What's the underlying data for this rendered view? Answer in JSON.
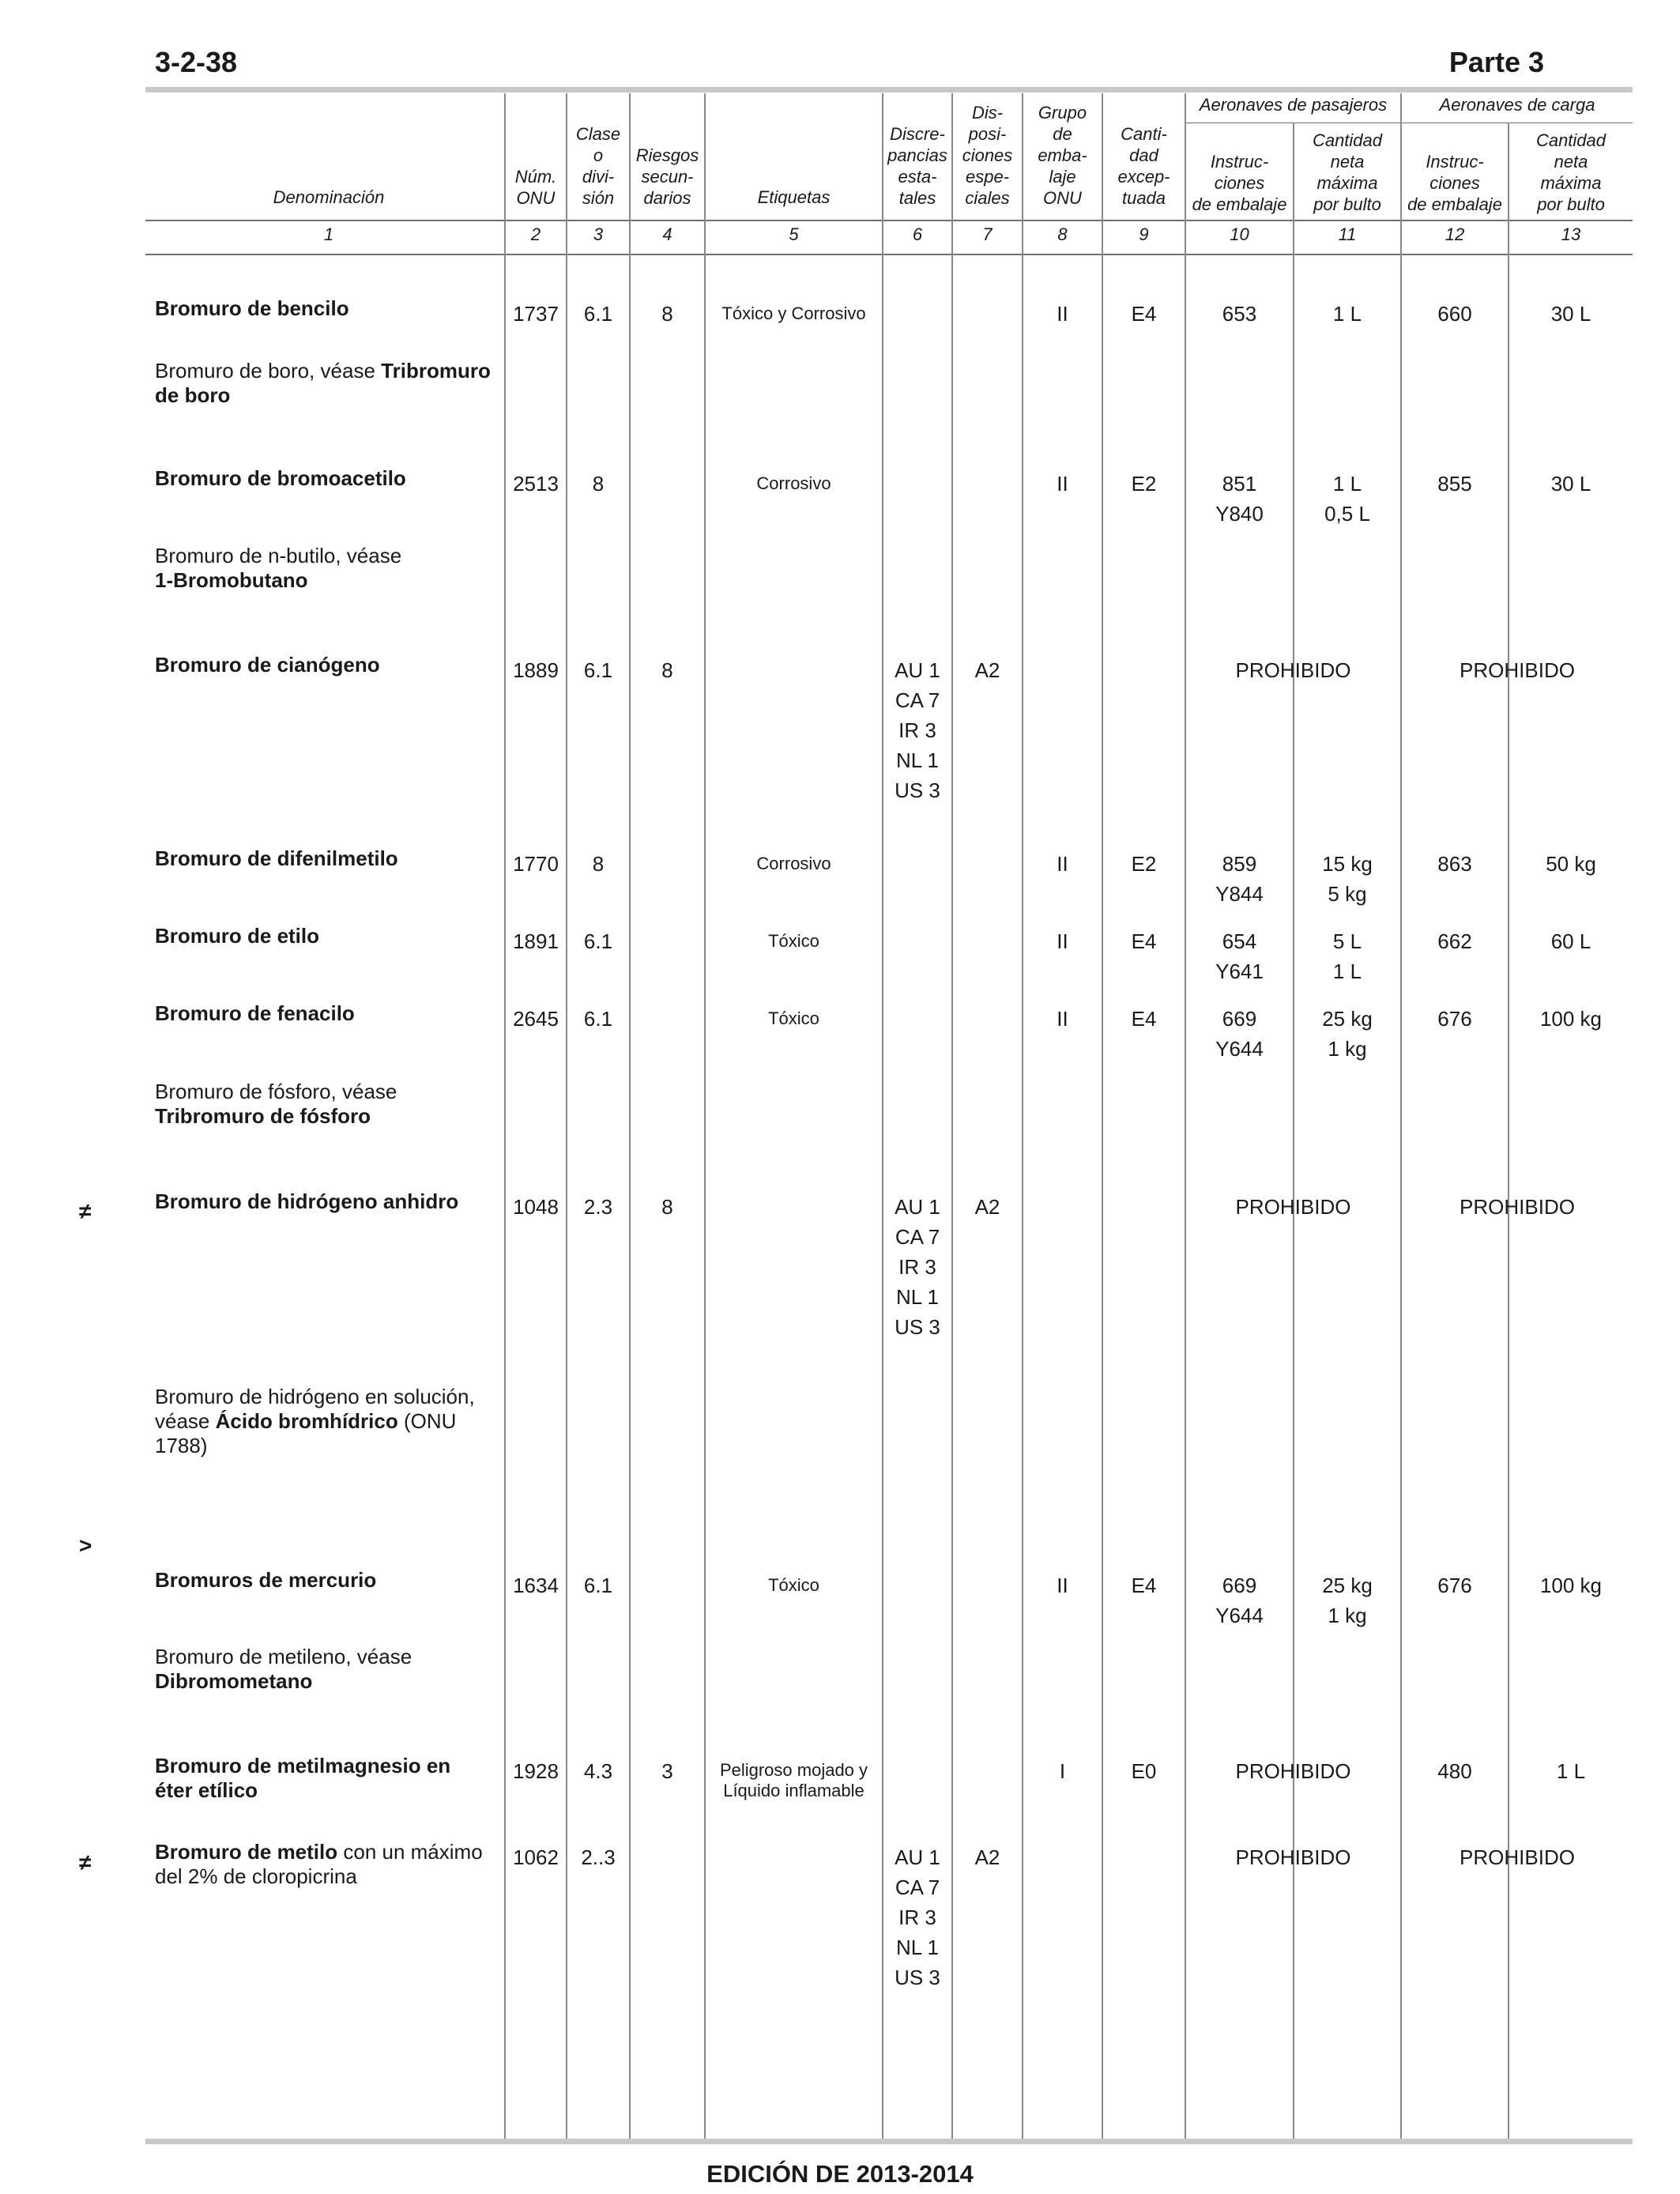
{
  "page": {
    "number": "3-2-38",
    "part": "Parte 3",
    "footer": "EDICIÓN DE 2013-2014"
  },
  "headers": {
    "c1": "Denominación",
    "c2": [
      "Núm.",
      "ONU"
    ],
    "c3": [
      "Clase",
      "o",
      "divi-",
      "sión"
    ],
    "c4": [
      "Riesgos",
      "secun-",
      "darios"
    ],
    "c5": "Etiquetas",
    "c6": [
      "Discre-",
      "pancias",
      "esta-",
      "tales"
    ],
    "c7": [
      "Dis-",
      "posi-",
      "ciones",
      "espe-",
      "ciales"
    ],
    "c8": [
      "Grupo",
      "de",
      "emba-",
      "laje",
      "ONU"
    ],
    "c9": [
      "Canti-",
      "dad",
      "excep-",
      "tuada"
    ],
    "pax": "Aeronaves de pasajeros",
    "cargo": "Aeronaves de carga",
    "c10": [
      "Instruc-",
      "ciones",
      "de embalaje"
    ],
    "c11": [
      "Cantidad",
      "neta",
      "máxima",
      "por bulto"
    ],
    "c12": [
      "Instruc-",
      "ciones",
      "de embalaje"
    ],
    "c13": [
      "Cantidad",
      "neta",
      "máxima",
      "por bulto"
    ],
    "numbers": [
      "1",
      "2",
      "3",
      "4",
      "5",
      "6",
      "7",
      "8",
      "9",
      "10",
      "11",
      "12",
      "13"
    ]
  },
  "rows": [
    {
      "name_bold": "Bromuro de bencilo",
      "onu": "1737",
      "clase": "6.1",
      "riesgos": "8",
      "etiquetas": "Tóxico y Corrosivo",
      "grupo": "II",
      "cant": "E4",
      "pax_instr": "653",
      "pax_qty": "1 L",
      "cargo_instr": "660",
      "cargo_qty": "30 L"
    },
    {
      "ref_prefix": "Bromuro de boro, véase ",
      "ref_bold": "Tribromuro de boro"
    },
    {
      "name_bold": "Bromuro de bromoacetilo",
      "onu": "2513",
      "clase": "8",
      "etiquetas": "Corrosivo",
      "grupo": "II",
      "cant": "E2",
      "pax_instr": "851",
      "pax_instr2": "Y840",
      "pax_qty": "1 L",
      "pax_qty2": "0,5 L",
      "cargo_instr": "855",
      "cargo_qty": "30 L"
    },
    {
      "ref_prefix": "Bromuro de n-butilo, véase",
      "ref_bold": "1-Bromobutano"
    },
    {
      "name_bold": "Bromuro de cianógeno",
      "onu": "1889",
      "clase": "6.1",
      "riesgos": "8",
      "discrepancias": [
        "AU 1",
        "CA 7",
        "IR 3",
        "NL 1",
        "US 3"
      ],
      "disposiciones": "A2",
      "pax_prohibido": "PROHIBIDO",
      "cargo_prohibido": "PROHIBIDO"
    },
    {
      "name_bold": "Bromuro de difenilmetilo",
      "onu": "1770",
      "clase": "8",
      "etiquetas": "Corrosivo",
      "grupo": "II",
      "cant": "E2",
      "pax_instr": "859",
      "pax_instr2": "Y844",
      "pax_qty": "15 kg",
      "pax_qty2": "5 kg",
      "cargo_instr": "863",
      "cargo_qty": "50 kg"
    },
    {
      "name_bold": "Bromuro de etilo",
      "onu": "1891",
      "clase": "6.1",
      "etiquetas": "Tóxico",
      "grupo": "II",
      "cant": "E4",
      "pax_instr": "654",
      "pax_instr2": "Y641",
      "pax_qty": "5 L",
      "pax_qty2": "1 L",
      "cargo_instr": "662",
      "cargo_qty": "60 L"
    },
    {
      "name_bold": "Bromuro de fenacilo",
      "onu": "2645",
      "clase": "6.1",
      "etiquetas": "Tóxico",
      "grupo": "II",
      "cant": "E4",
      "pax_instr": "669",
      "pax_instr2": "Y644",
      "pax_qty": "25 kg",
      "pax_qty2": "1 kg",
      "cargo_instr": "676",
      "cargo_qty": "100 kg"
    },
    {
      "ref_prefix": "Bromuro de fósforo, véase",
      "ref_bold": "Tribromuro de fósforo"
    },
    {
      "mark": "≠",
      "name_bold": "Bromuro de hidrógeno anhidro",
      "onu": "1048",
      "clase": "2.3",
      "riesgos": "8",
      "discrepancias": [
        "AU 1",
        "CA 7",
        "IR 3",
        "NL 1",
        "US 3"
      ],
      "disposiciones": "A2",
      "pax_prohibido": "PROHIBIDO",
      "cargo_prohibido": "PROHIBIDO"
    },
    {
      "ref_line1": "Bromuro de hidrógeno en solución,",
      "ref_line2_prefix": "véase ",
      "ref_line2_bold": "Ácido bromhídrico",
      "ref_line2_suffix": " (ONU",
      "ref_line3": "1788)"
    },
    {
      "mark": ">",
      "name_bold": "Bromuros de mercurio",
      "onu": "1634",
      "clase": "6.1",
      "etiquetas": "Tóxico",
      "grupo": "II",
      "cant": "E4",
      "pax_instr": "669",
      "pax_instr2": "Y644",
      "pax_qty": "25 kg",
      "pax_qty2": "1 kg",
      "cargo_instr": "676",
      "cargo_qty": "100 kg"
    },
    {
      "ref_prefix": "Bromuro de metileno, véase",
      "ref_bold": "Dibromometano"
    },
    {
      "name_bold_l1": "Bromuro de metilmagnesio en",
      "name_bold_l2": "éter etílico",
      "onu": "1928",
      "clase": "4.3",
      "riesgos": "3",
      "etiquetas_l1": "Peligroso mojado y",
      "etiquetas_l2": "Líquido inflamable",
      "grupo": "I",
      "cant": "E0",
      "pax_prohibido": "PROHIBIDO",
      "cargo_instr": "480",
      "cargo_qty": "1 L"
    },
    {
      "mark": "≠",
      "name_bold": "Bromuro de metilo",
      "name_suffix": " con un máximo",
      "name_line2": "del 2% de cloropicrina",
      "onu": "1062",
      "clase": "2..3",
      "discrepancias": [
        "AU 1",
        "CA 7",
        "IR 3",
        "NL 1",
        "US 3"
      ],
      "disposiciones": "A2",
      "pax_prohibido": "PROHIBIDO",
      "cargo_prohibido": "PROHIBIDO"
    }
  ]
}
